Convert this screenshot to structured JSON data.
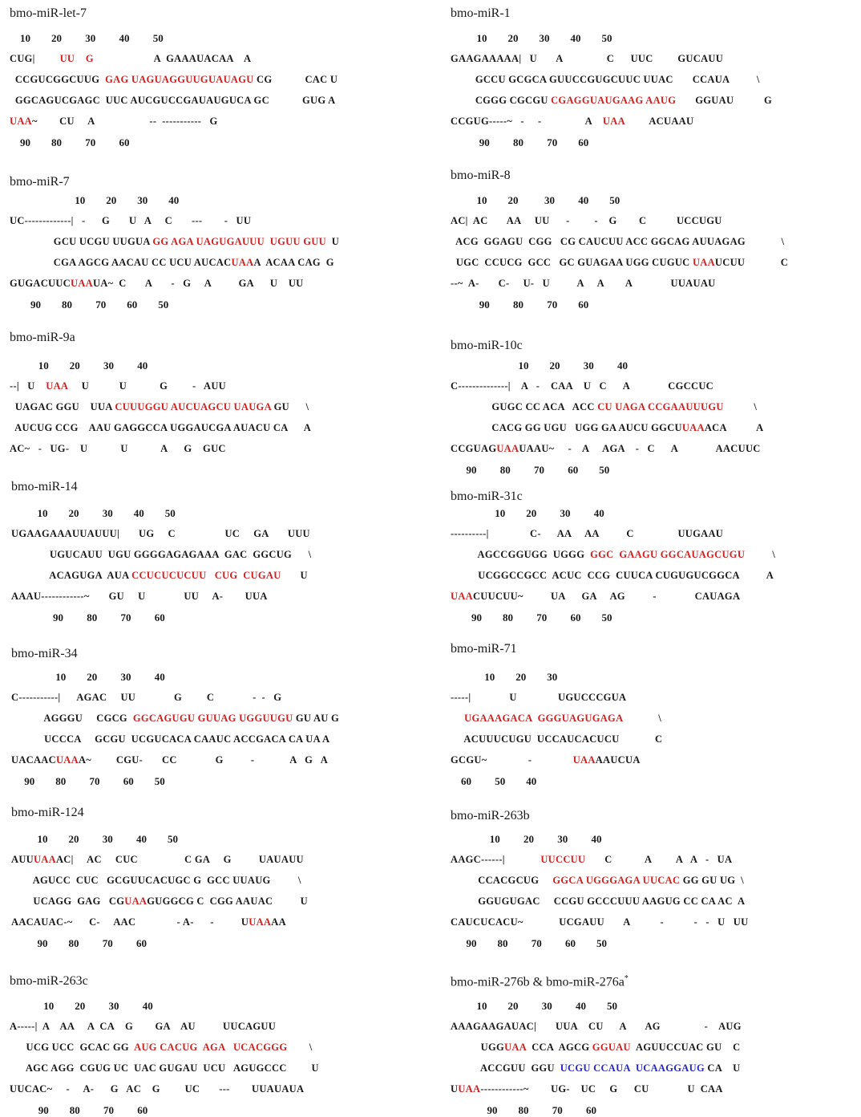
{
  "colors": {
    "mature": "#d41f1f",
    "star": "#2727c9",
    "text": "#1a1a1a"
  },
  "panels": [
    {
      "id": "p0",
      "title": "bmo-miR-let-7",
      "top_numbers": "    10        20         30         40         50",
      "rows": [
        "CUG|         UU    G                      A  GAAAUACAA    A",
        "  CCGUCGGCUUG  GAG UAGUAGGUUGUAUAGU CG            CAC U",
        "  GGCAGUCGAGC  UUC AUCGUCCGAUAUGUCA GC            GUG A",
        "UAA~        CU     A                    --  -----------   G"
      ],
      "bottom_numbers": "    90        80         70         60"
    },
    {
      "id": "p1",
      "title": "bmo-miR-1",
      "top_numbers": "          10        20        30        40        50",
      "rows": [
        "GAAGAAAAA|   U       A                C      UUC         GUCAUU",
        "         GCCU GCGCA GUUCCGUGCUUC UUAC       CCAUA          \\",
        "         CGGG CGCGU CGAGGUAUGAAG AAUG       GGUAU           G",
        "CCGUG-----~   -     -                A    UAA         ACUAAU"
      ],
      "bottom_numbers": "           90         80         70        60"
    },
    {
      "id": "p2",
      "title": "bmo-miR-7",
      "top_numbers": "                         10        20        30        40",
      "rows": [
        "UC-------------|   -      G       U   A     C       ---        -   UU",
        "                GCU UCGU UUGUA GG AGA UAGUGAUUU  UGUU GUU  U",
        "                CGA AGCG AACAU CC UCU AUCACUAAA  ACAA CAG  G",
        "GUGACUUCUAAUA~  C       A       -   G     A          GA      U    UU"
      ],
      "bottom_numbers": "        90        80         70        60        50"
    },
    {
      "id": "p3",
      "title": "bmo-miR-8",
      "top_numbers": "          10        20          30         40        50",
      "rows": [
        "AC|  AC       AA     UU      -         -    G        C           UCCUGU",
        "  ACG  GGAGU  CGG   CG CAUCUU ACC GGCAG AUUAGAG             \\",
        "  UGC  CCUCG  GCC   GC GUAGAA UGG CUGUC UAAUCUU             C",
        "--~  A-       C-     U-   U          A     A        A              UUAUAU"
      ],
      "bottom_numbers": "           90         80         70        60"
    },
    {
      "id": "p4",
      "title": "bmo-miR-9a",
      "top_numbers": "           10        20         30         40",
      "rows": [
        "--|   U    UAA     U           U            G         -   AUU",
        "  UAGAC GGU    UUA CUUUGGU AUCUAGCU UAUGA GU      \\",
        "  AUCUG CCG    AAU GAGGCCA UGGAUCGA AUACU CA      A",
        "AC~   -   UG-    U            U            A      G    GUC"
      ],
      "bottom_numbers": ""
    },
    {
      "id": "p5",
      "title": "bmo-miR-10c",
      "top_numbers": "                          10        20         30         40",
      "rows": [
        "C--------------|    A   -    CAA    U   C      A              CGCCUC",
        "               GUGC CC ACA   ACC CU UAGA CCGAAUUUGU           \\",
        "               CACG GG UGU   UGG GA AUCU GGCUUAAACA           A",
        "CCGUAGUAAUAAU~     -    A     AGA    -   C      A              AACUUC"
      ],
      "bottom_numbers": "      90         80         70         60        50"
    },
    {
      "id": "p6",
      "title": "bmo-miR-14",
      "top_numbers": "          10        20         30        40        50",
      "rows": [
        "UGAAGAAAUUAUUU|       UG     C                  UC     GA       UUU",
        "              UGUCAUU  UGU GGGGAGAGAAA  GAC  GGCUG      \\",
        "              ACAGUGA  AUA CCUCUCUCUU   CUG  CUGAU       U",
        "AAAU------------~       GU     U              UU     A-        UUA"
      ],
      "bottom_numbers": "                90         80         70         60"
    },
    {
      "id": "p7",
      "title": "bmo-miR-31c",
      "top_numbers": "                 10        20         30         40",
      "rows": [
        "----------|               C-      AA     AA          C                UUGAAU",
        "          AGCCGGUGG  UGGG  GGC  GAAGU GGCAUAGCUGU          \\",
        "          UCGGCCGCC  ACUC  CCG  CUUCA CUGUGUCGGCA          A",
        "UAACUUCUU~          UA      GA     AG          -              CAUAGA"
      ],
      "bottom_numbers": "        90        80         70         60        50"
    },
    {
      "id": "p8",
      "title": "bmo-miR-34",
      "top_numbers": "                 10        20         30         40",
      "rows": [
        "C-----------|      AGAC     UU              G         C              -  -   G",
        "            AGGGU     CGCG  GGCAGUGU GUUAG UGGUUGU GU AU G",
        "            UCCCA     GCGU  UCGUCACA CAAUC ACCGACA CA UA A",
        "UACAACUAAA~         CGU-       CC              G          -             A   G   A"
      ],
      "bottom_numbers": "     90        80         70         60        50"
    },
    {
      "id": "p9",
      "title": "bmo-miR-71",
      "top_numbers": "             10        20        30",
      "rows": [
        "-----|              U               UGUCCCGUA",
        "     UGAAAGACA  GGGUAGUGAGA             \\",
        "     ACUUUCUGU  UCCAUCACUCU             C",
        "GCGU~               -               UAAAAUCUA"
      ],
      "bottom_numbers": "    60         50        40"
    },
    {
      "id": "p10",
      "title": "bmo-miR-124",
      "top_numbers": "          10        20         30         40        50",
      "rows": [
        "AUUUAAAC|     AC     CUC                 C GA     G          UAUAUU",
        "        AGUCC  CUC   GCGUUCACUGC G  GCC UUAUG          \\",
        "        UCAGG  GAG   CGUAAGUGGCG C  CGG AAUAC          U",
        "AACAUAC-~      C-     AAC               - A-      -          UUAAAA"
      ],
      "bottom_numbers": "          90        80         70         60"
    },
    {
      "id": "p11",
      "title": "bmo-miR-263b",
      "top_numbers": "               10         20         30         40",
      "rows": [
        "AAGC------|             UUCCUU       C            A         A   A   -   UA",
        "          CCACGCUG     GGCA UGGGAGA UUCAC GG GU UG  \\",
        "          GGUGUGAC     CCGU GCCCUUU AAGUG CC CA AC  A",
        "CAUCUCACU~             UCGAUU       A           -           -   -   U   UU"
      ],
      "bottom_numbers": "      90        80         70         60        50"
    },
    {
      "id": "p12",
      "title": "bmo-miR-263c",
      "top_numbers": "             10        20         30         40",
      "rows": [
        "A-----|  A    AA     A  CA    G        GA    AU          UUCAGUU",
        "      UCG UCC  GCAC GG  AUG CACUG  AGA   UCACGGG        \\",
        "      AGC AGG  CGUG UC  UAC GUGAU  UCU   AGUGCCC         U",
        "UUCAC~     -     A-      G   AC    G         UC       ---        UUAUAUA"
      ],
      "bottom_numbers": "           90        80         70         60"
    },
    {
      "id": "p13",
      "title": "bmo-miR-276b & bmo-miR-276a",
      "title_sup": "*",
      "top_numbers": "          10        20         30         40        50",
      "rows": [
        "AAAGAAGAUAC|       UUA    CU      A       AG                -    AUG",
        "           UGGUAA  CCA  AGCG GGUAU  AGUUCCUAC GU    C",
        "           ACCGUU  GGU  UCGU CCAUA  UCAAGGAUG CA    U",
        "UUAA------------~        UG-    UC     G      CU              U  CAA"
      ],
      "bottom_numbers": "              90        80         70         60"
    }
  ]
}
